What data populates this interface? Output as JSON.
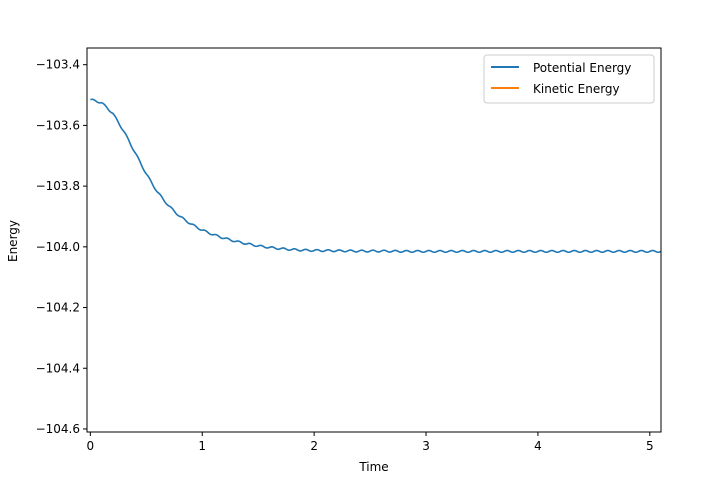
{
  "chart_data": {
    "type": "line",
    "xlabel": "Time",
    "ylabel": "Energy",
    "xlim": [
      -0.03,
      5.1
    ],
    "ylim": [
      -104.61,
      -103.345
    ],
    "xticks": [
      "0",
      "1",
      "2",
      "3",
      "4",
      "5"
    ],
    "xtick_values": [
      0,
      1,
      2,
      3,
      4,
      5
    ],
    "yticks": [
      "−103.4",
      "−103.6",
      "−103.8",
      "−104.0",
      "−104.2",
      "−104.4",
      "−104.6"
    ],
    "ytick_values": [
      -103.4,
      -103.6,
      -103.8,
      -104.0,
      -104.2,
      -104.4,
      -104.6
    ],
    "grid": false,
    "legend_position": "top-right",
    "series": [
      {
        "name": "Potential Energy",
        "color": "#1f77b4",
        "x": [
          0.0,
          0.1,
          0.2,
          0.3,
          0.4,
          0.5,
          0.6,
          0.7,
          0.8,
          0.9,
          1.0,
          1.1,
          1.2,
          1.3,
          1.4,
          1.5,
          1.6,
          1.7,
          1.8,
          1.9,
          2.0,
          2.2,
          2.4,
          2.6,
          2.8,
          3.0,
          3.2,
          3.4,
          3.6,
          3.8,
          4.0,
          4.2,
          4.4,
          4.6,
          4.8,
          5.0,
          5.1
        ],
        "values": [
          -103.515,
          -103.525,
          -103.56,
          -103.62,
          -103.69,
          -103.76,
          -103.82,
          -103.865,
          -103.9,
          -103.925,
          -103.945,
          -103.96,
          -103.972,
          -103.982,
          -103.99,
          -103.997,
          -104.002,
          -104.006,
          -104.009,
          -104.011,
          -104.012,
          -104.013,
          -104.014,
          -104.014,
          -104.015,
          -104.015,
          -104.015,
          -104.015,
          -104.015,
          -104.015,
          -104.015,
          -104.015,
          -104.015,
          -104.015,
          -104.015,
          -104.015,
          -104.015
        ]
      },
      {
        "name": "Kinetic Energy",
        "color": "#ff7f0e",
        "x": [],
        "values": []
      }
    ]
  }
}
